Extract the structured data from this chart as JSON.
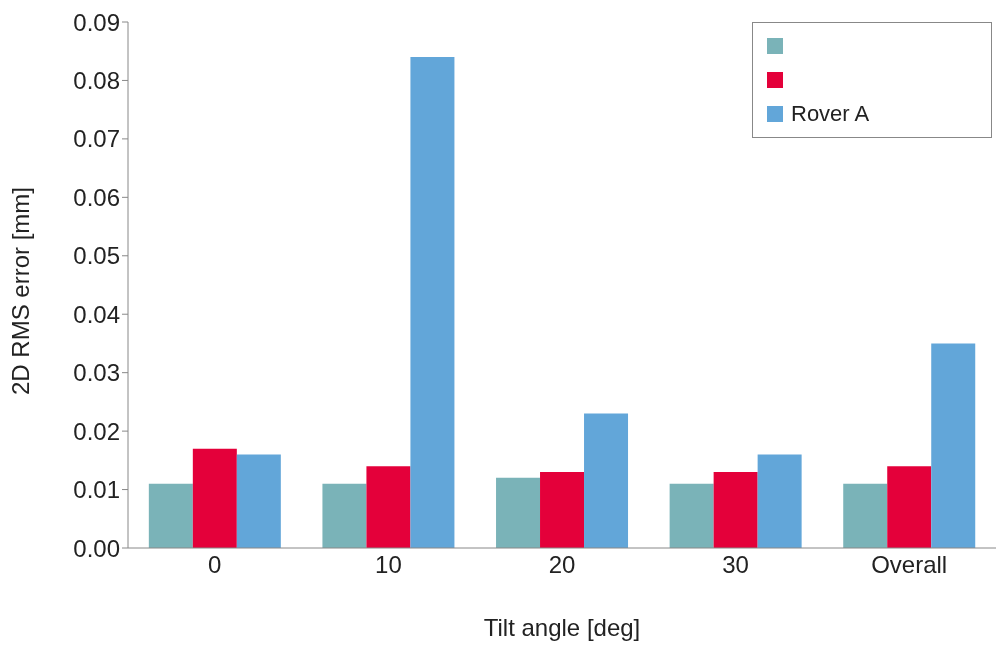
{
  "chart_data": {
    "type": "bar",
    "xlabel": "Tilt angle [deg]",
    "ylabel": "2D RMS error [mm]",
    "categories": [
      "0",
      "10",
      "20",
      "30",
      "Overall"
    ],
    "series": [
      {
        "color": "#7ab3b8",
        "values": [
          0.011,
          0.011,
          0.012,
          0.011,
          0.011
        ]
      },
      {
        "color": "#e4003a",
        "values": [
          0.017,
          0.014,
          0.013,
          0.013,
          0.014
        ]
      },
      {
        "name": "Rover A",
        "color": "#62a6d9",
        "values": [
          0.016,
          0.084,
          0.023,
          0.016,
          0.035
        ]
      }
    ],
    "ylim": [
      0,
      0.09
    ],
    "yticks": [
      {
        "value": 0,
        "label": "0.00"
      },
      {
        "value": 0.01,
        "label": "0.01"
      },
      {
        "value": 0.02,
        "label": "0.02"
      },
      {
        "value": 0.03,
        "label": "0.03"
      },
      {
        "value": 0.04,
        "label": "0.04"
      },
      {
        "value": 0.05,
        "label": "0.05"
      },
      {
        "value": 0.06,
        "label": "0.06"
      },
      {
        "value": 0.07,
        "label": "0.07"
      },
      {
        "value": 0.08,
        "label": "0.08"
      },
      {
        "value": 0.09,
        "label": "0.09"
      }
    ],
    "legend": "top right"
  }
}
